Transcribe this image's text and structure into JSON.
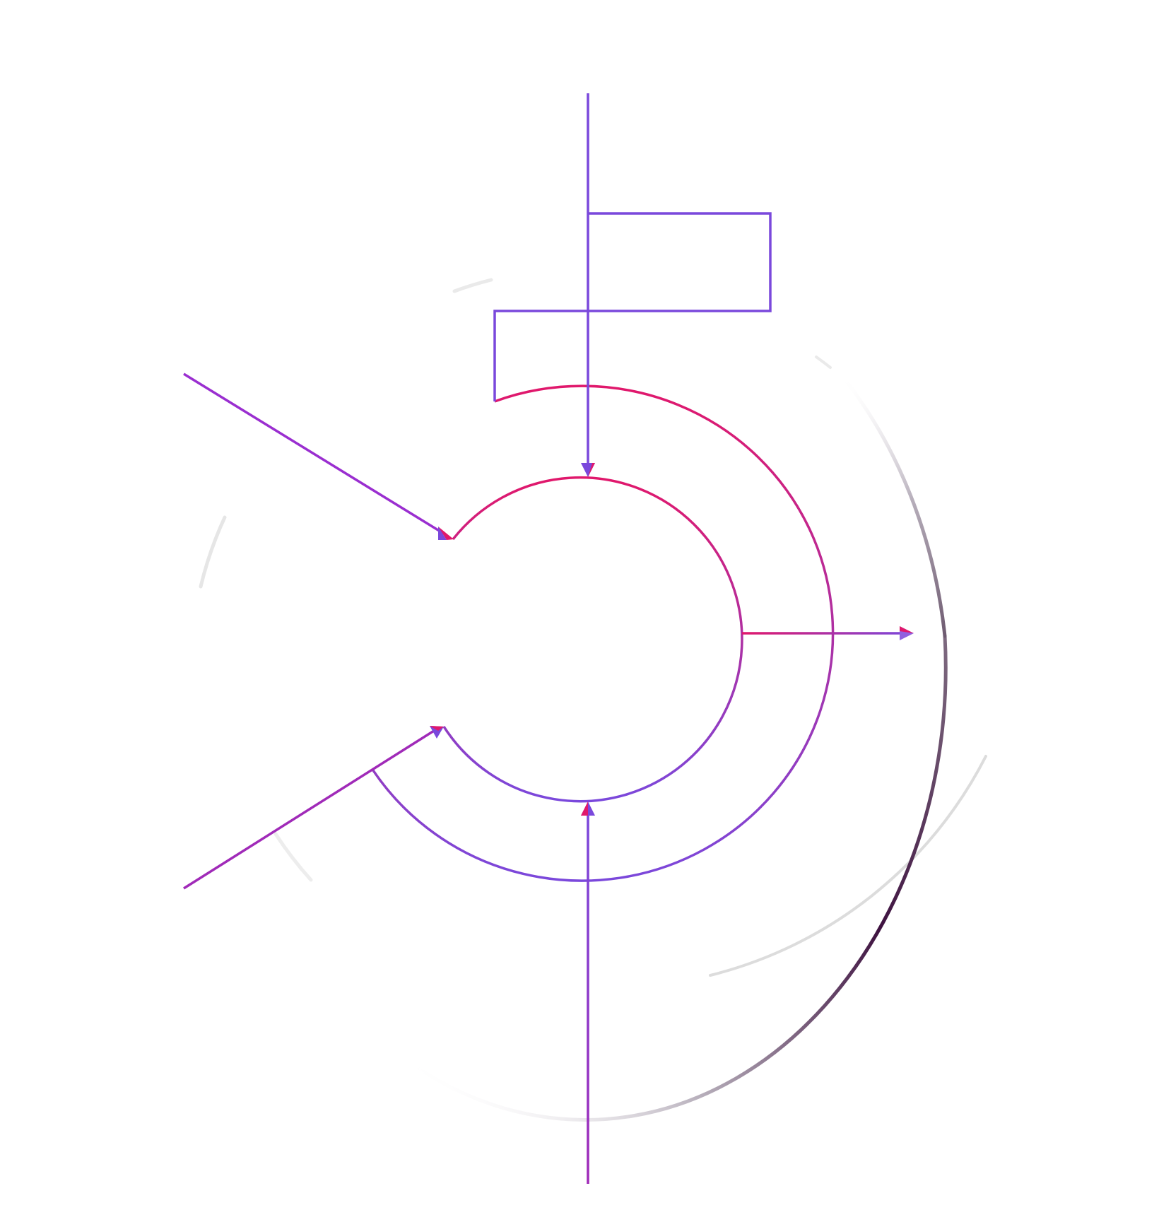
{
  "colors": {
    "background": "#ffffff",
    "violet": "#7a48dc",
    "magenta": "#e0186c",
    "dark_plum": "#3e1240",
    "faint_gray": "#dcdcdc"
  },
  "icons": [
    "arrowhead-icon"
  ]
}
